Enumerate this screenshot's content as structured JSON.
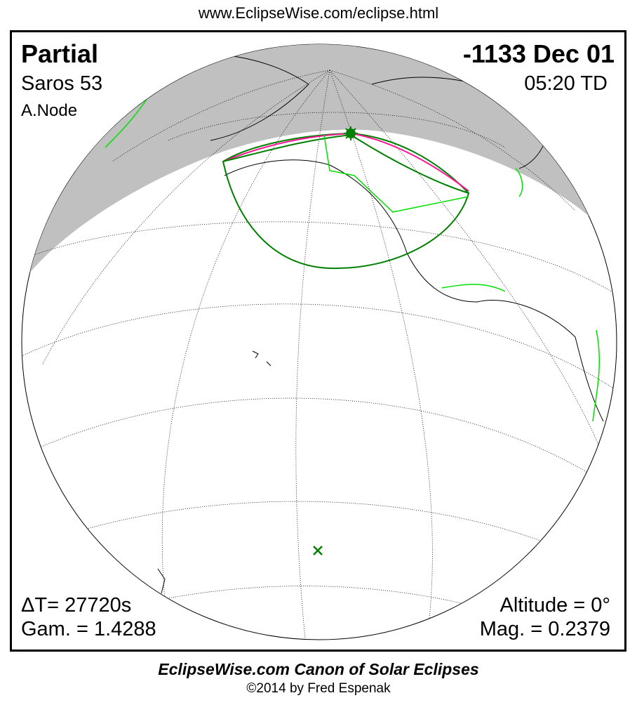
{
  "header": {
    "url": "www.EclipseWise.com/eclipse.html"
  },
  "eclipse": {
    "type": "Partial",
    "date": "-1133 Dec 01",
    "saros": "Saros  53",
    "time": "05:20 TD",
    "node": "A.Node",
    "delta_t": "ΔT=  27720s",
    "gamma": "Gam. = 1.4288",
    "altitude": "Altitude =  0°",
    "magnitude": "Mag. = 0.2379"
  },
  "map": {
    "projection": "orthographic globe",
    "colors": {
      "night": "#c0c0c0",
      "day": "#ffffff",
      "penumbra": "#008000",
      "sunrise_sunset": "#ff1493",
      "borders": "#00e000",
      "coastline": "#000000"
    },
    "markers": [
      "greatest-eclipse-star",
      "sub-solar-point-x"
    ]
  },
  "footer": {
    "title": "EclipseWise.com Canon of Solar Eclipses",
    "copyright": "©2014 by Fred Espenak"
  }
}
